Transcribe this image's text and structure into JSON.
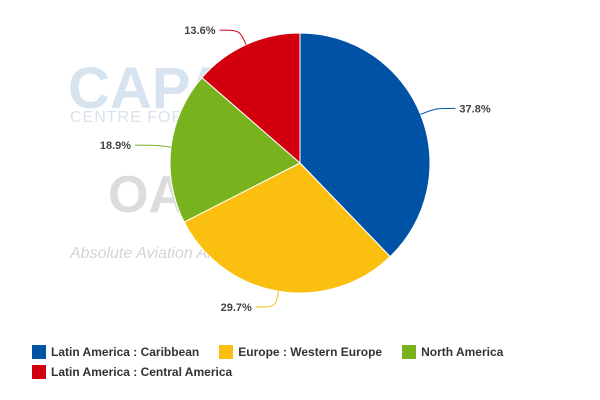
{
  "watermark": {
    "brand": "CAPA",
    "brand_sub": "CENTRE FOR AVIATION",
    "partner": "OAG",
    "tagline": "Absolute Aviation Analytics"
  },
  "chart_data": {
    "type": "pie",
    "title": "",
    "start_angle_deg": 0,
    "direction": "clockwise",
    "slices": [
      {
        "label": "Latin America : Caribbean",
        "value": 37.8,
        "display": "37.8%",
        "color": "#0052a5"
      },
      {
        "label": "Europe : Western Europe",
        "value": 29.7,
        "display": "29.7%",
        "color": "#fbbf0f"
      },
      {
        "label": "North America",
        "value": 18.9,
        "display": "18.9%",
        "color": "#78b31d"
      },
      {
        "label": "Latin America : Central America",
        "value": 13.6,
        "display": "13.6%",
        "color": "#d2000f"
      }
    ],
    "legend_position": "bottom"
  }
}
